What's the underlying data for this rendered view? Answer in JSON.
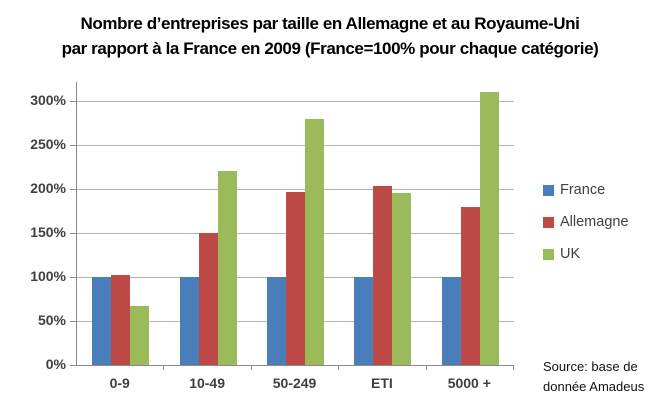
{
  "header": {
    "title_line1": "Nombre d’entreprises par taille en Allemagne et au Royaume-Uni",
    "title_line2": "par rapport à la France en 2009 (France=100% pour chaque catégorie)"
  },
  "chart_data": {
    "type": "bar",
    "title": "Nombre d’entreprises par taille en Allemagne et au Royaume-Uni par rapport à la France en 2009 (France=100% pour chaque catégorie)",
    "categories": [
      "0-9",
      "10-49",
      "50-249",
      "ETI",
      "5000 +"
    ],
    "series": [
      {
        "name": "France",
        "color": "#4a7ebb",
        "values": [
          100,
          100,
          100,
          100,
          100
        ]
      },
      {
        "name": "Allemagne",
        "color": "#be4a47",
        "values": [
          102,
          150,
          197,
          203,
          180
        ]
      },
      {
        "name": "UK",
        "color": "#9bba59",
        "values": [
          67,
          220,
          280,
          196,
          310
        ]
      }
    ],
    "xlabel": "",
    "ylabel": "",
    "y_axis": {
      "min": 0,
      "max": 300,
      "step": 50,
      "unit": "%"
    },
    "ylim": [
      0,
      300
    ],
    "grid": true,
    "legend_position": "right",
    "colors": {
      "gridline": "#b3b3b3",
      "axis": "#898989",
      "tick_text": "#3f3f3f",
      "legend_text": "#404040"
    }
  },
  "source": {
    "line1": "Source: base de",
    "line2": "donnée Amadeus"
  }
}
